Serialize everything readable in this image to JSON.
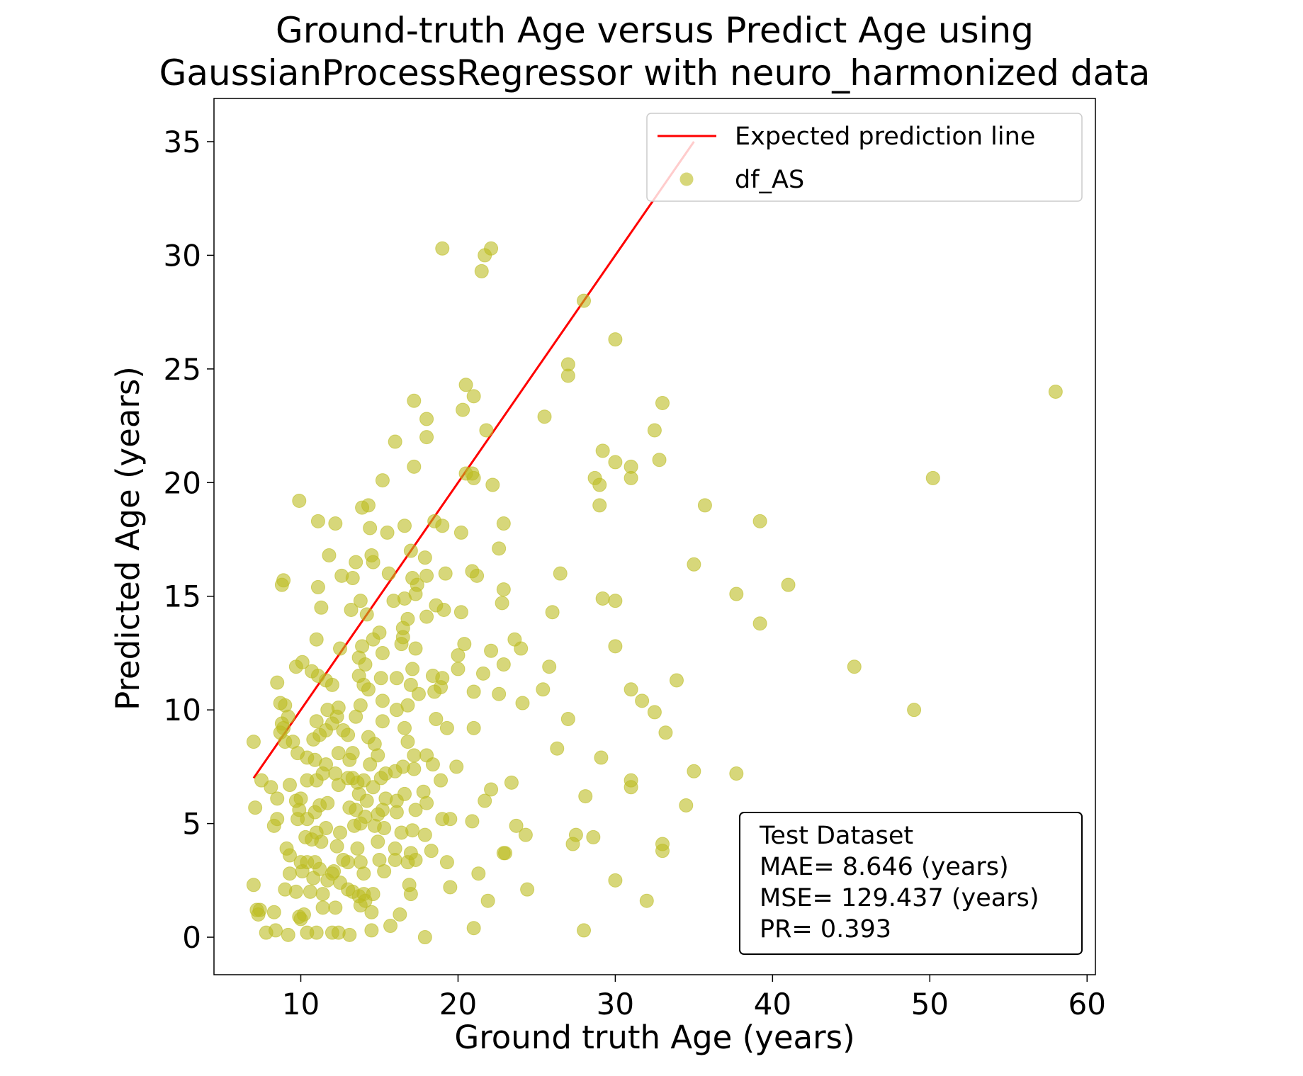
{
  "chart_data": {
    "type": "scatter",
    "title": [
      "Ground-truth Age versus Predict Age using",
      "GaussianProcessRegressor  with neuro_harmonized data"
    ],
    "x_label": "Ground truth Age (years)",
    "y_label": "Predicted Age (years)",
    "xlim": [
      4.48,
      60.53
    ],
    "ylim": [
      -1.65,
      36.9
    ],
    "xticks": [
      10,
      20,
      30,
      40,
      50,
      60
    ],
    "yticks": [
      0,
      5,
      10,
      15,
      20,
      25,
      30,
      35
    ],
    "legend": "upper right",
    "annotation": [
      "Test Dataset",
      "MAE= 8.646 (years)",
      "MSE= 129.437 (years)",
      "PR= 0.393"
    ],
    "series": [
      {
        "name": "Expected prediction line",
        "type": "line",
        "color": "#ff0000",
        "x": [
          7,
          35
        ],
        "values": [
          7,
          35
        ]
      },
      {
        "name": "df_AS",
        "type": "scatter",
        "color": "#bcbd22",
        "x": [
          19.0,
          21.5,
          21.7,
          22.1,
          28.0,
          30.0,
          27.0,
          27.0,
          58.0,
          33.0,
          32.5,
          25.5,
          32.8,
          29.2,
          30.0,
          31.0,
          31.0,
          28.7,
          29.0,
          50.2,
          29.0,
          35.7,
          39.2,
          26.5,
          35.0,
          41.0,
          37.7,
          29.2,
          30.0,
          26.0,
          39.2,
          30.0,
          25.8,
          45.2,
          33.9,
          31.0,
          25.4,
          31.7,
          32.5,
          49.0,
          27.0,
          33.2,
          26.3,
          29.1,
          35.0,
          37.7,
          31.0,
          31.0,
          28.1,
          34.5,
          27.5,
          27.3,
          28.6,
          33.0,
          33.0,
          30.0,
          32.0,
          28.0,
          24.4,
          24.3,
          23.7,
          23.0,
          22.9,
          23.4,
          22.1,
          21.9,
          21.0,
          21.3,
          21.7,
          20.9,
          20.5,
          21.0,
          20.3,
          21.8,
          17.2,
          18.0,
          18.0,
          16.0,
          17.2,
          15.2,
          20.5,
          20.9,
          21.0,
          22.2,
          14.3,
          13.9,
          9.9,
          11.1,
          12.2,
          14.4,
          16.6,
          15.5,
          18.5,
          19.0,
          20.2,
          22.9,
          22.6,
          17.0,
          11.8,
          14.5,
          14.6,
          15.6,
          17.9,
          20.9,
          21.2,
          19.2,
          18.0,
          17.1,
          17.4,
          17.3,
          15.9,
          16.6,
          13.3,
          12.6,
          13.5,
          11.1,
          8.9,
          8.8,
          11.3,
          13.2,
          14.2,
          13.8,
          16.8,
          16.5,
          18.0,
          18.6,
          19.1,
          20.2,
          22.8,
          22.9,
          15.0,
          16.5,
          16.4,
          17.3,
          14.6,
          11.0,
          12.5,
          13.9,
          13.7,
          15.2,
          14.1,
          10.1,
          9.7,
          10.7,
          11.1,
          11.6,
          12.0,
          8.5,
          13.7,
          14.0,
          15.1,
          16.1,
          17.1,
          17.0,
          19.0,
          18.9,
          18.4,
          20.0,
          20.0,
          20.4,
          21.6,
          22.1,
          22.9,
          23.6,
          24.0,
          22.6,
          24.1,
          21.0,
          18.5,
          17.5,
          16.8,
          16.1,
          15.2,
          14.3,
          13.8,
          13.5,
          12.4,
          12.3,
          11.7,
          12.0,
          11.0,
          11.6,
          8.7,
          9.0,
          8.8,
          8.9,
          9.2,
          8.7,
          9.0,
          9.5,
          7.0,
          10.8,
          11.2,
          12.7,
          13.0,
          14.7,
          15.2,
          16.6,
          16.8,
          17.2,
          18.6,
          19.3,
          21.0,
          18.0,
          18.4,
          14.3,
          12.4,
          13.3,
          13.1,
          11.6,
          10.9,
          10.4,
          9.8,
          14.4,
          14.9,
          15.1,
          15.4,
          16.0,
          16.5,
          17.2,
          14.0,
          13.6,
          13.3,
          13.0,
          12.2,
          11.4,
          11.0,
          10.4,
          9.3,
          7.5,
          8.1,
          8.5,
          9.7,
          10.0,
          12.4,
          13.7,
          14.2,
          14.6,
          15.4,
          16.1,
          16.6,
          17.8,
          18.9,
          19.9,
          18.0,
          17.3,
          16.1,
          15.2,
          14.9,
          14.1,
          13.5,
          13.1,
          11.7,
          11.2,
          10.9,
          10.4,
          9.9,
          9.8,
          8.5,
          8.3,
          7.1,
          11.0,
          11.6,
          12.5,
          13.4,
          13.8,
          14.7,
          15.3,
          16.4,
          17.1,
          17.9,
          19.0,
          19.5,
          10.3,
          10.7,
          11.3,
          12.3,
          13.6,
          14.9,
          16.0,
          17.0,
          17.3,
          18.3,
          9.1,
          9.3,
          10.0,
          10.4,
          10.9,
          11.2,
          12.1,
          12.7,
          13.0,
          13.8,
          15.0,
          16.0,
          16.8,
          19.3,
          9.3,
          10.1,
          10.8,
          11.7,
          12.0,
          14.0,
          15.3,
          16.9,
          12.5,
          7.0,
          9.0,
          9.7,
          10.6,
          11.4,
          13.0,
          14.0,
          14.6,
          17.0,
          19.5,
          7.2,
          7.3,
          7.4,
          8.3,
          9.9,
          10.2,
          11.4,
          12.2,
          13.8,
          14.1,
          14.5,
          16.3,
          12.0,
          12.4,
          13.1,
          14.5,
          15.7,
          17.9,
          7.8,
          8.4,
          9.2,
          10.0,
          11.0,
          10.4,
          13.3,
          13.7
        ],
        "values": [
          30.3,
          29.3,
          30.0,
          30.3,
          28.0,
          26.3,
          25.2,
          24.7,
          24.0,
          23.5,
          22.3,
          22.9,
          21.0,
          21.4,
          20.9,
          20.7,
          20.2,
          20.2,
          19.9,
          20.2,
          19.0,
          19.0,
          18.3,
          16.0,
          16.4,
          15.5,
          15.1,
          14.9,
          14.8,
          14.3,
          13.8,
          12.8,
          11.9,
          11.9,
          11.3,
          10.9,
          10.9,
          10.4,
          9.9,
          10.0,
          9.6,
          9.0,
          8.3,
          7.9,
          7.3,
          7.2,
          6.9,
          6.6,
          6.2,
          5.8,
          4.5,
          4.1,
          4.4,
          4.1,
          3.8,
          2.5,
          1.6,
          0.3,
          2.1,
          4.5,
          4.9,
          3.7,
          3.7,
          6.8,
          6.5,
          1.6,
          0.4,
          2.8,
          6.0,
          5.1,
          24.3,
          23.8,
          23.2,
          22.3,
          23.6,
          22.8,
          22.0,
          21.8,
          20.7,
          20.1,
          20.4,
          20.4,
          20.2,
          19.9,
          19.0,
          18.9,
          19.2,
          18.3,
          18.2,
          18.0,
          18.1,
          17.8,
          18.3,
          18.1,
          17.8,
          18.2,
          17.1,
          17.0,
          16.8,
          16.8,
          16.5,
          16.0,
          16.7,
          16.1,
          15.9,
          16.0,
          15.9,
          15.8,
          15.5,
          15.1,
          14.8,
          14.9,
          15.8,
          15.9,
          16.5,
          15.4,
          15.7,
          15.5,
          14.5,
          14.4,
          14.2,
          14.8,
          14.0,
          13.6,
          14.1,
          14.6,
          14.4,
          14.3,
          14.7,
          15.3,
          13.4,
          13.2,
          12.9,
          12.7,
          13.1,
          13.1,
          12.7,
          12.8,
          12.3,
          12.5,
          12.0,
          12.1,
          11.9,
          11.7,
          11.5,
          11.3,
          11.1,
          11.2,
          11.5,
          11.1,
          11.4,
          11.4,
          11.8,
          11.1,
          11.4,
          11.0,
          11.5,
          11.8,
          12.4,
          12.9,
          11.6,
          12.6,
          12.0,
          13.1,
          12.7,
          10.7,
          10.3,
          10.8,
          10.8,
          10.7,
          10.2,
          10.0,
          10.4,
          10.9,
          10.2,
          9.7,
          10.1,
          9.7,
          10.0,
          9.4,
          9.5,
          9.1,
          10.3,
          10.2,
          9.4,
          9.2,
          9.7,
          9.0,
          8.6,
          8.6,
          8.6,
          8.7,
          8.9,
          9.1,
          8.9,
          8.5,
          9.5,
          9.2,
          8.6,
          8.0,
          9.6,
          9.2,
          9.2,
          8.0,
          7.6,
          8.8,
          8.1,
          8.1,
          7.8,
          7.6,
          7.8,
          7.9,
          8.1,
          7.6,
          8.0,
          7.0,
          7.2,
          7.3,
          7.5,
          7.4,
          6.9,
          6.8,
          7.0,
          7.0,
          7.2,
          7.2,
          6.9,
          6.9,
          6.7,
          6.9,
          6.6,
          6.1,
          6.0,
          6.1,
          6.7,
          6.3,
          6.0,
          6.6,
          6.1,
          6.0,
          6.3,
          6.4,
          6.9,
          7.5,
          5.9,
          5.6,
          5.5,
          5.6,
          5.4,
          5.3,
          5.6,
          5.7,
          5.9,
          5.8,
          5.5,
          5.2,
          5.6,
          5.2,
          5.2,
          4.9,
          5.7,
          4.6,
          4.8,
          4.6,
          4.9,
          5.0,
          4.9,
          4.8,
          4.6,
          4.7,
          4.5,
          5.2,
          5.2,
          4.4,
          4.3,
          4.2,
          4.0,
          3.9,
          4.2,
          3.9,
          3.7,
          3.4,
          3.8,
          3.9,
          3.6,
          3.3,
          3.3,
          3.3,
          3.0,
          2.9,
          3.4,
          3.3,
          3.3,
          3.4,
          3.4,
          3.3,
          3.3,
          2.8,
          2.9,
          2.6,
          2.5,
          2.8,
          2.8,
          2.9,
          2.3,
          2.4,
          2.3,
          2.1,
          2.0,
          2.0,
          1.9,
          2.1,
          1.9,
          1.9,
          1.9,
          2.2,
          1.2,
          1.0,
          1.2,
          1.1,
          0.9,
          1.0,
          1.3,
          1.3,
          1.4,
          1.6,
          1.1,
          1.0,
          0.2,
          0.2,
          0.1,
          0.3,
          0.5,
          0.0,
          0.2,
          0.3,
          0.1,
          0.8,
          0.2,
          0.2,
          2.0,
          1.8
        ]
      }
    ]
  }
}
